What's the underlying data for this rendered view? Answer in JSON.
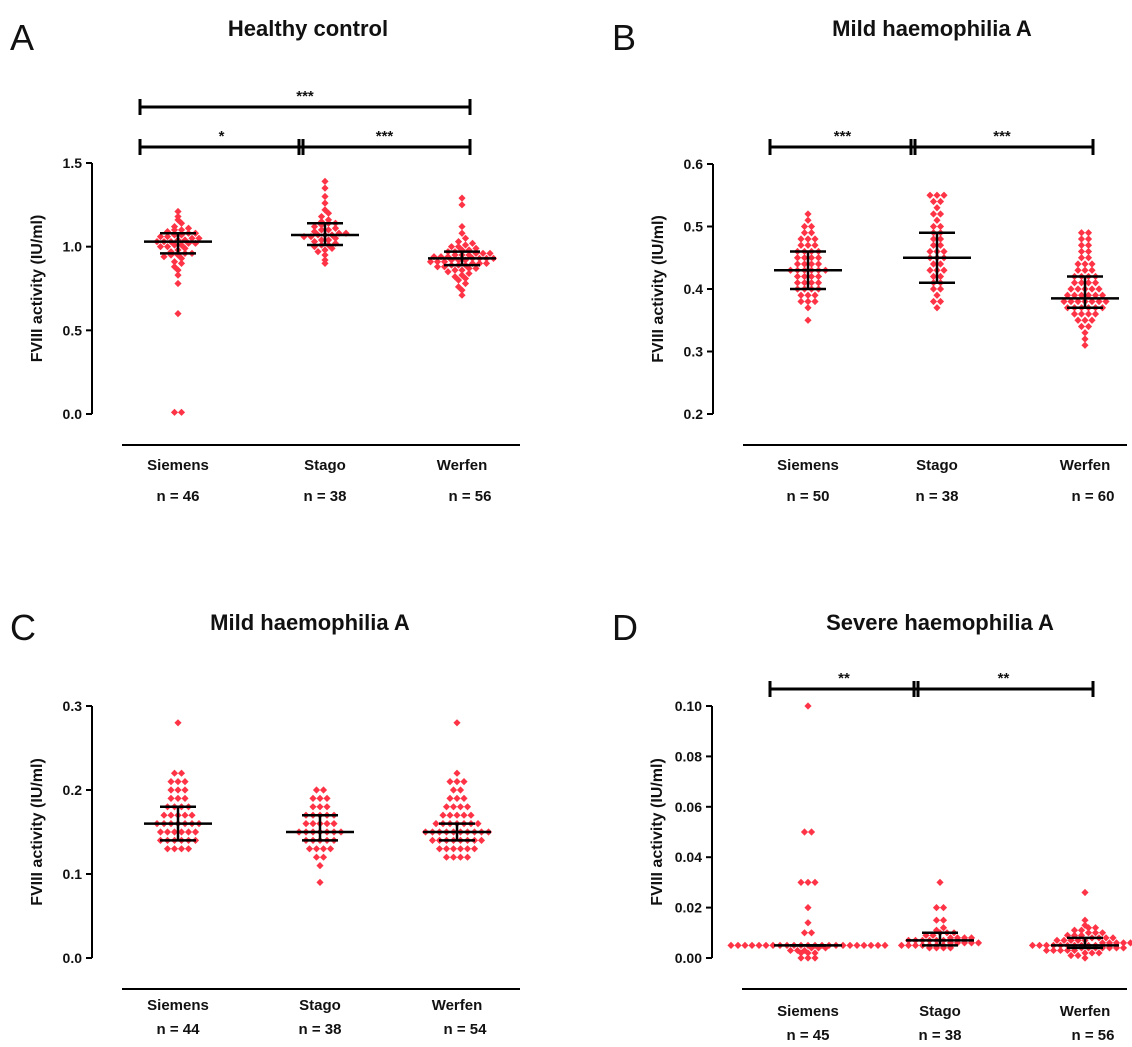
{
  "figure": {
    "colors": {
      "points": "#ff3346",
      "lines": "#000000"
    }
  },
  "chart_data": [
    {
      "type": "scatter",
      "letter": "A",
      "title": "Healthy control",
      "ylabel": "FVIII activity (IU/ml)",
      "ylim": [
        0.0,
        1.5
      ],
      "yticks": [
        "0.0",
        "0.5",
        "1.0",
        "1.5"
      ],
      "categories": [
        "Siemens",
        "Stago",
        "Werfen"
      ],
      "n_labels": [
        "n = 46",
        "n = 38",
        "n = 56"
      ],
      "groups": [
        {
          "name": "Siemens",
          "median": 1.03,
          "q1": 0.96,
          "q3": 1.08,
          "values": [
            0.01,
            0.01,
            0.6,
            0.78,
            0.83,
            0.86,
            0.88,
            0.9,
            0.91,
            0.93,
            0.94,
            0.95,
            0.95,
            0.96,
            0.96,
            0.97,
            0.98,
            0.99,
            1.0,
            1.0,
            1.01,
            1.01,
            1.02,
            1.02,
            1.03,
            1.03,
            1.03,
            1.04,
            1.04,
            1.05,
            1.05,
            1.06,
            1.06,
            1.07,
            1.07,
            1.08,
            1.08,
            1.09,
            1.1,
            1.1,
            1.11,
            1.12,
            1.14,
            1.16,
            1.18,
            1.21
          ]
        },
        {
          "name": "Stago",
          "median": 1.07,
          "q1": 1.01,
          "q3": 1.14,
          "values": [
            0.9,
            0.92,
            0.95,
            0.97,
            0.98,
            0.99,
            1.0,
            1.01,
            1.01,
            1.02,
            1.03,
            1.04,
            1.04,
            1.05,
            1.06,
            1.06,
            1.07,
            1.07,
            1.07,
            1.08,
            1.08,
            1.09,
            1.1,
            1.1,
            1.11,
            1.12,
            1.13,
            1.14,
            1.14,
            1.15,
            1.16,
            1.18,
            1.2,
            1.22,
            1.26,
            1.3,
            1.35,
            1.39
          ]
        },
        {
          "name": "Werfen",
          "median": 0.93,
          "q1": 0.89,
          "q3": 0.97,
          "values": [
            0.71,
            0.74,
            0.76,
            0.78,
            0.8,
            0.81,
            0.82,
            0.83,
            0.84,
            0.85,
            0.86,
            0.86,
            0.87,
            0.87,
            0.88,
            0.88,
            0.89,
            0.89,
            0.89,
            0.9,
            0.9,
            0.9,
            0.91,
            0.91,
            0.91,
            0.92,
            0.92,
            0.92,
            0.93,
            0.93,
            0.93,
            0.93,
            0.94,
            0.94,
            0.94,
            0.95,
            0.95,
            0.95,
            0.96,
            0.96,
            0.96,
            0.97,
            0.97,
            0.98,
            0.98,
            0.99,
            1.0,
            1.0,
            1.01,
            1.02,
            1.03,
            1.05,
            1.08,
            1.12,
            1.25,
            1.29
          ]
        }
      ],
      "significance": [
        {
          "from": 0,
          "to": 2,
          "label": "***"
        },
        {
          "from": 0,
          "to": 1,
          "label": "*"
        },
        {
          "from": 1,
          "to": 2,
          "label": "***"
        }
      ]
    },
    {
      "type": "scatter",
      "letter": "B",
      "title": "Mild haemophilia A",
      "ylabel": "FVIII activity (IU/ml)",
      "ylim": [
        0.2,
        0.6
      ],
      "yticks": [
        "0.2",
        "0.3",
        "0.4",
        "0.5",
        "0.6"
      ],
      "categories": [
        "Siemens",
        "Stago",
        "Werfen"
      ],
      "n_labels": [
        "n = 50",
        "n = 38",
        "n = 60"
      ],
      "groups": [
        {
          "name": "Siemens",
          "median": 0.43,
          "q1": 0.4,
          "q3": 0.46,
          "values": [
            0.35,
            0.37,
            0.38,
            0.38,
            0.38,
            0.39,
            0.39,
            0.39,
            0.4,
            0.4,
            0.4,
            0.4,
            0.41,
            0.41,
            0.41,
            0.41,
            0.42,
            0.42,
            0.42,
            0.42,
            0.43,
            0.43,
            0.43,
            0.43,
            0.43,
            0.43,
            0.44,
            0.44,
            0.44,
            0.44,
            0.45,
            0.45,
            0.45,
            0.45,
            0.46,
            0.46,
            0.46,
            0.46,
            0.47,
            0.47,
            0.47,
            0.48,
            0.48,
            0.48,
            0.49,
            0.49,
            0.5,
            0.5,
            0.51,
            0.52
          ]
        },
        {
          "name": "Stago",
          "median": 0.45,
          "q1": 0.41,
          "q3": 0.49,
          "values": [
            0.37,
            0.38,
            0.38,
            0.39,
            0.4,
            0.4,
            0.41,
            0.41,
            0.42,
            0.42,
            0.43,
            0.43,
            0.43,
            0.44,
            0.44,
            0.45,
            0.45,
            0.45,
            0.46,
            0.46,
            0.46,
            0.47,
            0.47,
            0.48,
            0.48,
            0.49,
            0.49,
            0.5,
            0.5,
            0.51,
            0.52,
            0.52,
            0.53,
            0.54,
            0.54,
            0.55,
            0.55,
            0.55
          ]
        },
        {
          "name": "Werfen",
          "median": 0.385,
          "q1": 0.37,
          "q3": 0.42,
          "values": [
            0.31,
            0.32,
            0.33,
            0.34,
            0.34,
            0.35,
            0.35,
            0.35,
            0.36,
            0.36,
            0.36,
            0.36,
            0.37,
            0.37,
            0.37,
            0.37,
            0.37,
            0.37,
            0.38,
            0.38,
            0.38,
            0.38,
            0.38,
            0.38,
            0.38,
            0.39,
            0.39,
            0.39,
            0.39,
            0.39,
            0.39,
            0.4,
            0.4,
            0.4,
            0.4,
            0.4,
            0.41,
            0.41,
            0.41,
            0.41,
            0.42,
            0.42,
            0.42,
            0.42,
            0.43,
            0.43,
            0.43,
            0.44,
            0.44,
            0.44,
            0.45,
            0.45,
            0.46,
            0.46,
            0.47,
            0.47,
            0.48,
            0.48,
            0.49,
            0.49
          ]
        }
      ],
      "significance": [
        {
          "from": 0,
          "to": 1,
          "label": "***"
        },
        {
          "from": 1,
          "to": 2,
          "label": "***"
        }
      ]
    },
    {
      "type": "scatter",
      "letter": "C",
      "title": "Mild haemophilia A",
      "ylabel": "FVIII activity (IU/ml)",
      "ylim": [
        0.0,
        0.3
      ],
      "yticks": [
        "0.0",
        "0.1",
        "0.2",
        "0.3"
      ],
      "categories": [
        "Siemens",
        "Stago",
        "Werfen"
      ],
      "n_labels": [
        "n = 44",
        "n = 38",
        "n = 54"
      ],
      "groups": [
        {
          "name": "Siemens",
          "median": 0.16,
          "q1": 0.14,
          "q3": 0.18,
          "values": [
            0.13,
            0.13,
            0.13,
            0.13,
            0.14,
            0.14,
            0.14,
            0.14,
            0.14,
            0.14,
            0.15,
            0.15,
            0.15,
            0.15,
            0.15,
            0.15,
            0.16,
            0.16,
            0.16,
            0.16,
            0.16,
            0.16,
            0.16,
            0.17,
            0.17,
            0.17,
            0.17,
            0.17,
            0.18,
            0.18,
            0.18,
            0.18,
            0.19,
            0.19,
            0.19,
            0.2,
            0.2,
            0.2,
            0.21,
            0.21,
            0.21,
            0.22,
            0.22,
            0.28
          ]
        },
        {
          "name": "Stago",
          "median": 0.15,
          "q1": 0.14,
          "q3": 0.17,
          "values": [
            0.09,
            0.11,
            0.12,
            0.12,
            0.13,
            0.13,
            0.13,
            0.13,
            0.14,
            0.14,
            0.14,
            0.14,
            0.14,
            0.15,
            0.15,
            0.15,
            0.15,
            0.15,
            0.15,
            0.15,
            0.16,
            0.16,
            0.16,
            0.16,
            0.16,
            0.17,
            0.17,
            0.17,
            0.17,
            0.17,
            0.18,
            0.18,
            0.18,
            0.19,
            0.19,
            0.19,
            0.2,
            0.2
          ]
        },
        {
          "name": "Werfen",
          "median": 0.15,
          "q1": 0.14,
          "q3": 0.16,
          "values": [
            0.12,
            0.12,
            0.12,
            0.12,
            0.13,
            0.13,
            0.13,
            0.13,
            0.13,
            0.13,
            0.14,
            0.14,
            0.14,
            0.14,
            0.14,
            0.14,
            0.14,
            0.14,
            0.15,
            0.15,
            0.15,
            0.15,
            0.15,
            0.15,
            0.15,
            0.15,
            0.15,
            0.15,
            0.16,
            0.16,
            0.16,
            0.16,
            0.16,
            0.16,
            0.16,
            0.17,
            0.17,
            0.17,
            0.17,
            0.17,
            0.18,
            0.18,
            0.18,
            0.18,
            0.19,
            0.19,
            0.19,
            0.2,
            0.2,
            0.21,
            0.21,
            0.21,
            0.22,
            0.28
          ]
        }
      ],
      "significance": []
    },
    {
      "type": "scatter",
      "letter": "D",
      "title": "Severe haemophilia A",
      "ylabel": "FVIII activity (IU/ml)",
      "ylim": [
        0.0,
        0.1
      ],
      "yticks": [
        "0.00",
        "0.02",
        "0.04",
        "0.06",
        "0.08",
        "0.10"
      ],
      "categories": [
        "Siemens",
        "Stago",
        "Werfen"
      ],
      "n_labels": [
        "n = 45",
        "n = 38",
        "n = 56"
      ],
      "groups": [
        {
          "name": "Siemens",
          "median": 0.005,
          "q1": 0.005,
          "q3": 0.005,
          "values": [
            0.0,
            0.0,
            0.0,
            0.002,
            0.002,
            0.002,
            0.003,
            0.003,
            0.003,
            0.004,
            0.004,
            0.004,
            0.005,
            0.005,
            0.005,
            0.005,
            0.005,
            0.005,
            0.005,
            0.005,
            0.005,
            0.005,
            0.005,
            0.005,
            0.005,
            0.005,
            0.005,
            0.005,
            0.005,
            0.005,
            0.005,
            0.005,
            0.005,
            0.005,
            0.005,
            0.01,
            0.01,
            0.014,
            0.02,
            0.03,
            0.03,
            0.03,
            0.05,
            0.05,
            0.1
          ]
        },
        {
          "name": "Stago",
          "median": 0.007,
          "q1": 0.005,
          "q3": 0.01,
          "values": [
            0.004,
            0.004,
            0.004,
            0.004,
            0.005,
            0.005,
            0.005,
            0.005,
            0.005,
            0.005,
            0.005,
            0.006,
            0.006,
            0.006,
            0.006,
            0.006,
            0.007,
            0.007,
            0.007,
            0.007,
            0.007,
            0.007,
            0.008,
            0.008,
            0.008,
            0.008,
            0.009,
            0.009,
            0.01,
            0.01,
            0.01,
            0.011,
            0.012,
            0.015,
            0.015,
            0.02,
            0.02,
            0.03
          ]
        },
        {
          "name": "Werfen",
          "median": 0.005,
          "q1": 0.004,
          "q3": 0.008,
          "values": [
            0.0,
            0.001,
            0.001,
            0.002,
            0.002,
            0.002,
            0.003,
            0.003,
            0.003,
            0.003,
            0.003,
            0.004,
            0.004,
            0.004,
            0.004,
            0.004,
            0.004,
            0.004,
            0.005,
            0.005,
            0.005,
            0.005,
            0.005,
            0.005,
            0.005,
            0.005,
            0.005,
            0.005,
            0.006,
            0.006,
            0.006,
            0.006,
            0.006,
            0.006,
            0.007,
            0.007,
            0.007,
            0.007,
            0.007,
            0.008,
            0.008,
            0.008,
            0.008,
            0.009,
            0.009,
            0.009,
            0.01,
            0.01,
            0.01,
            0.011,
            0.011,
            0.012,
            0.012,
            0.013,
            0.015,
            0.026
          ]
        }
      ],
      "significance": [
        {
          "from": 0,
          "to": 1,
          "label": "**"
        },
        {
          "from": 1,
          "to": 2,
          "label": "**"
        }
      ]
    }
  ]
}
